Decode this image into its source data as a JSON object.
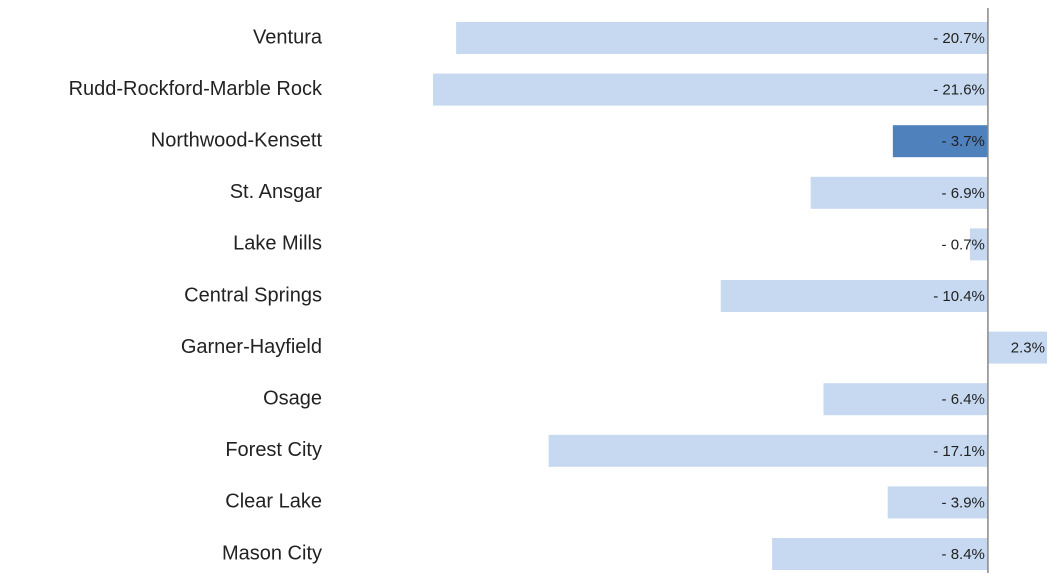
{
  "chart_data": {
    "type": "hbar",
    "categories": [
      "Ventura",
      "Rudd-Rockford-Marble Rock",
      "Northwood-Kensett",
      "St. Ansgar",
      "Lake Mills",
      "Central Springs",
      "Garner-Hayfield",
      "Osage",
      "Forest City",
      "Clear Lake",
      "Mason City"
    ],
    "values": [
      -20.7,
      -21.6,
      -3.7,
      -6.9,
      -0.7,
      -10.4,
      2.3,
      -6.4,
      -17.1,
      -3.9,
      -8.4
    ],
    "value_labels": [
      "- 20.7%",
      "- 21.6%",
      "- 3.7%",
      "- 6.9%",
      "- 0.7%",
      "- 10.4%",
      "2.3%",
      "- 6.4%",
      "- 17.1%",
      "- 3.9%",
      "- 8.4%"
    ],
    "colors": [
      "#c6d9f1",
      "#c6d9f1",
      "#4f81bd",
      "#c6d9f1",
      "#c6d9f1",
      "#c6d9f1",
      "#c6d9f1",
      "#c6d9f1",
      "#c6d9f1",
      "#c6d9f1",
      "#c6d9f1"
    ],
    "xlim": [
      -21.6,
      2.3
    ]
  }
}
